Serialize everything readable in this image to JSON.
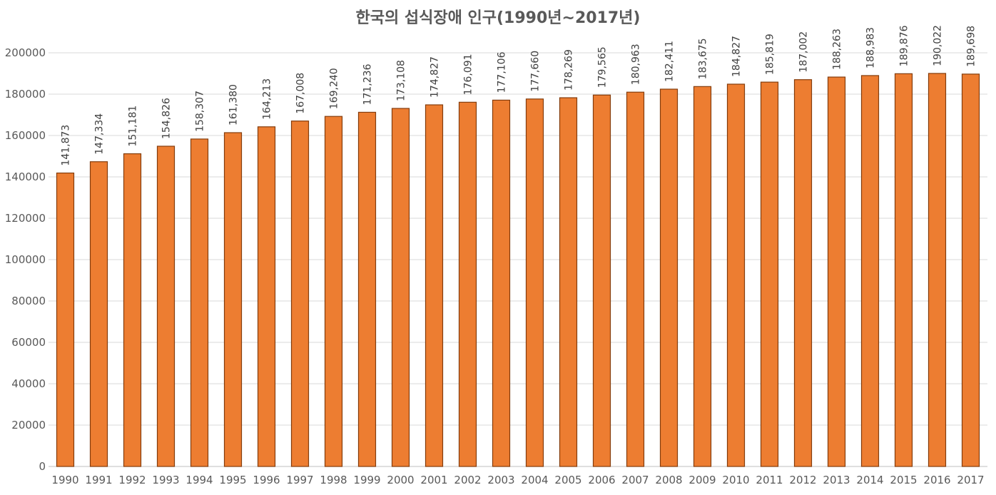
{
  "colors": {
    "bar_fill": "#ED7D31",
    "bar_stroke": "#843C0C",
    "gridline": "#D9D9D9",
    "text": "#595959"
  },
  "chart_data": {
    "type": "bar",
    "title": "한국의 섭식장애 인구(1990년~2017년)",
    "xlabel": "",
    "ylabel": "",
    "ylim": [
      0,
      200000
    ],
    "yticks": [
      0,
      20000,
      40000,
      60000,
      80000,
      100000,
      120000,
      140000,
      160000,
      180000,
      200000
    ],
    "ytick_labels": [
      "0",
      "20000",
      "40000",
      "60000",
      "80000",
      "100000",
      "120000",
      "140000",
      "160000",
      "180000",
      "200000"
    ],
    "grid": true,
    "legend": "none",
    "categories": [
      "1990",
      "1991",
      "1992",
      "1993",
      "1994",
      "1995",
      "1996",
      "1997",
      "1998",
      "1999",
      "2000",
      "2001",
      "2002",
      "2003",
      "2004",
      "2005",
      "2006",
      "2007",
      "2008",
      "2009",
      "2010",
      "2011",
      "2012",
      "2013",
      "2014",
      "2015",
      "2016",
      "2017"
    ],
    "values": [
      141873,
      147334,
      151181,
      154826,
      158307,
      161380,
      164213,
      167008,
      169240,
      171236,
      173108,
      174827,
      176091,
      177106,
      177660,
      178269,
      179565,
      180963,
      182411,
      183675,
      184827,
      185819,
      187002,
      188263,
      188983,
      189876,
      190022,
      189698
    ],
    "data_labels": [
      "141,873",
      "147,334",
      "151,181",
      "154,826",
      "158,307",
      "161,380",
      "164,213",
      "167,008",
      "169,240",
      "171,236",
      "173,108",
      "174,827",
      "176,091",
      "177,106",
      "177,660",
      "178,269",
      "179,565",
      "180,963",
      "182,411",
      "183,675",
      "184,827",
      "185,819",
      "187,002",
      "188,263",
      "188,983",
      "189,876",
      "190,022",
      "189,698"
    ]
  }
}
